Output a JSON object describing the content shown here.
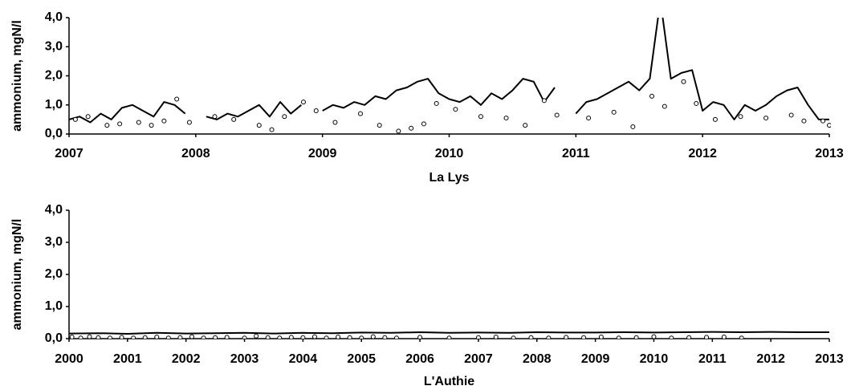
{
  "chart_data": [
    {
      "type": "line",
      "title": "La Lys",
      "y_label": "ammonium, mgN/l",
      "xlim": [
        2007,
        2013
      ],
      "xticks": [
        2007,
        2008,
        2009,
        2010,
        2011,
        2012,
        2013
      ],
      "ylim": [
        0,
        4
      ],
      "yticks": [
        {
          "value": 0,
          "label": "0,0"
        },
        {
          "value": 1,
          "label": "1,0"
        },
        {
          "value": 2,
          "label": "2,0"
        },
        {
          "value": 3,
          "label": "3,0"
        },
        {
          "value": 4,
          "label": "4,0"
        }
      ],
      "series": [
        {
          "type": "line",
          "color": "#000000",
          "x": [
            2007.0,
            2007.083,
            2007.167,
            2007.25,
            2007.333,
            2007.417,
            2007.5,
            2007.583,
            2007.667,
            2007.75,
            2007.833,
            2007.917,
            2008.0,
            2008.083,
            2008.167,
            2008.25,
            2008.333,
            2008.417,
            2008.5,
            2008.583,
            2008.667,
            2008.75,
            2008.833,
            2008.917,
            2009.0,
            2009.083,
            2009.167,
            2009.25,
            2009.333,
            2009.417,
            2009.5,
            2009.583,
            2009.667,
            2009.75,
            2009.833,
            2009.917,
            2010.0,
            2010.083,
            2010.167,
            2010.25,
            2010.333,
            2010.417,
            2010.5,
            2010.583,
            2010.667,
            2010.75,
            2010.833,
            2010.917,
            2011.0,
            2011.083,
            2011.167,
            2011.25,
            2011.333,
            2011.417,
            2011.5,
            2011.583,
            2011.667,
            2011.75,
            2011.833,
            2011.917,
            2012.0,
            2012.083,
            2012.167,
            2012.25,
            2012.333,
            2012.417,
            2012.5,
            2012.583,
            2012.667,
            2012.75,
            2012.833,
            2012.917,
            2013.0
          ],
          "values": [
            0.5,
            0.6,
            0.4,
            0.7,
            0.5,
            0.9,
            1.0,
            0.8,
            0.6,
            1.1,
            1.0,
            0.7,
            null,
            0.6,
            0.5,
            0.7,
            0.6,
            0.8,
            1.0,
            0.6,
            1.1,
            0.7,
            1.0,
            null,
            0.8,
            1.0,
            0.9,
            1.1,
            1.0,
            1.3,
            1.2,
            1.5,
            1.6,
            1.8,
            1.9,
            1.4,
            1.2,
            1.1,
            1.3,
            1.0,
            1.4,
            1.2,
            1.5,
            1.9,
            1.8,
            1.1,
            1.6,
            null,
            0.7,
            1.1,
            1.2,
            1.4,
            1.6,
            1.8,
            1.5,
            1.9,
            4.6,
            1.9,
            2.1,
            2.2,
            0.8,
            1.1,
            1.0,
            0.5,
            1.0,
            0.8,
            1.0,
            1.3,
            1.5,
            1.6,
            1.0,
            0.5,
            0.5
          ]
        },
        {
          "type": "scatter",
          "color": "#000000",
          "x": [
            2007.05,
            2007.15,
            2007.3,
            2007.4,
            2007.55,
            2007.65,
            2007.75,
            2007.85,
            2007.95,
            2008.15,
            2008.3,
            2008.5,
            2008.6,
            2008.7,
            2008.85,
            2008.95,
            2009.1,
            2009.3,
            2009.45,
            2009.6,
            2009.7,
            2009.8,
            2009.9,
            2010.05,
            2010.25,
            2010.45,
            2010.6,
            2010.75,
            2010.85,
            2011.1,
            2011.3,
            2011.45,
            2011.6,
            2011.7,
            2011.85,
            2011.95,
            2012.1,
            2012.3,
            2012.5,
            2012.7,
            2012.8,
            2012.95,
            2013.0
          ],
          "values": [
            0.5,
            0.6,
            0.3,
            0.35,
            0.4,
            0.3,
            0.45,
            1.2,
            0.4,
            0.6,
            0.5,
            0.3,
            0.15,
            0.6,
            1.1,
            0.8,
            0.4,
            0.7,
            0.3,
            0.1,
            0.2,
            0.35,
            1.05,
            0.85,
            0.6,
            0.55,
            0.3,
            1.15,
            0.65,
            0.55,
            0.75,
            0.25,
            1.3,
            0.95,
            1.8,
            1.05,
            0.5,
            0.6,
            0.55,
            0.65,
            0.45,
            0.45,
            0.3
          ]
        }
      ]
    },
    {
      "type": "line",
      "title": "L'Authie",
      "y_label": "ammonium, mgN/l",
      "xlim": [
        2000,
        2013
      ],
      "xticks": [
        2000,
        2001,
        2002,
        2003,
        2004,
        2005,
        2006,
        2007,
        2008,
        2009,
        2010,
        2011,
        2012,
        2013
      ],
      "ylim": [
        0,
        4
      ],
      "yticks": [
        {
          "value": 0,
          "label": "0,0"
        },
        {
          "value": 1,
          "label": "1,0"
        },
        {
          "value": 2,
          "label": "2,0"
        },
        {
          "value": 3,
          "label": "3,0"
        },
        {
          "value": 4,
          "label": "4,0"
        }
      ],
      "series": [
        {
          "type": "line",
          "color": "#000000",
          "x": [
            2000.0,
            2000.5,
            2001.0,
            2001.5,
            2002.0,
            2002.5,
            2003.0,
            2003.5,
            2004.0,
            2004.5,
            2005.0,
            2005.5,
            2006.0,
            2006.5,
            2007.0,
            2007.5,
            2008.0,
            2008.5,
            2009.0,
            2009.5,
            2010.0,
            2010.5,
            2011.0,
            2011.5,
            2012.0,
            2012.5,
            2013.0
          ],
          "values": [
            0.16,
            0.17,
            0.15,
            0.18,
            0.16,
            0.17,
            0.18,
            0.16,
            0.18,
            0.17,
            0.19,
            0.18,
            0.2,
            0.18,
            0.19,
            0.18,
            0.2,
            0.19,
            0.19,
            0.2,
            0.19,
            0.2,
            0.21,
            0.2,
            0.21,
            0.2,
            0.2
          ]
        },
        {
          "type": "scatter",
          "color": "#000000",
          "x": [
            2000.05,
            2000.2,
            2000.35,
            2000.5,
            2000.7,
            2000.9,
            2001.1,
            2001.3,
            2001.5,
            2001.7,
            2001.9,
            2002.1,
            2002.3,
            2002.5,
            2002.7,
            2003.0,
            2003.2,
            2003.4,
            2003.6,
            2003.8,
            2004.0,
            2004.2,
            2004.4,
            2004.6,
            2004.8,
            2005.0,
            2005.2,
            2005.4,
            2005.6,
            2006.0,
            2006.5,
            2007.0,
            2007.3,
            2007.6,
            2007.9,
            2008.2,
            2008.5,
            2008.8,
            2009.1,
            2009.4,
            2009.7,
            2010.0,
            2010.3,
            2010.6,
            2010.9,
            2011.2,
            2011.5
          ],
          "values": [
            0.05,
            0.02,
            0.06,
            0.03,
            0.02,
            0.04,
            0.02,
            0.03,
            0.05,
            0.02,
            0.03,
            0.06,
            0.02,
            0.03,
            0.04,
            0.02,
            0.08,
            0.03,
            0.02,
            0.04,
            0.03,
            0.06,
            0.02,
            0.05,
            0.03,
            0.02,
            0.06,
            0.03,
            0.02,
            0.04,
            0.02,
            0.03,
            0.05,
            0.02,
            0.03,
            0.02,
            0.04,
            0.03,
            0.05,
            0.02,
            0.03,
            0.06,
            0.02,
            0.03,
            0.04,
            0.05,
            0.02
          ]
        }
      ]
    }
  ]
}
